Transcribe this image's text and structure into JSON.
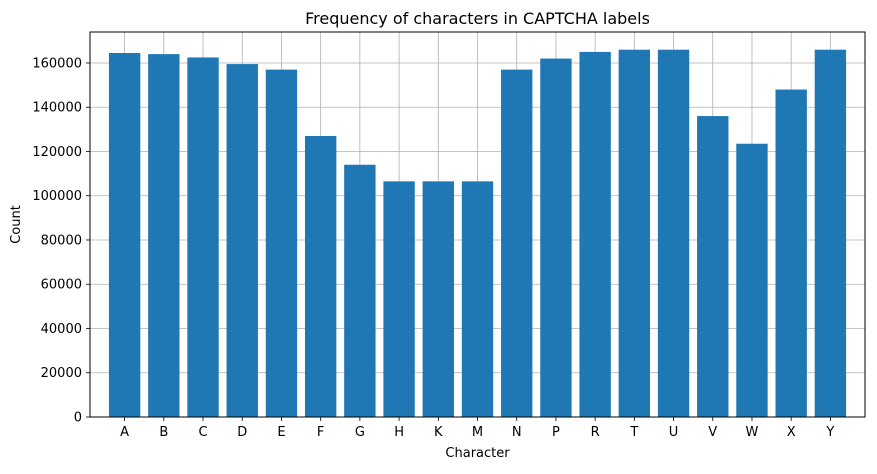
{
  "chart_data": {
    "type": "bar",
    "title": "Frequency of characters in CAPTCHA labels",
    "xlabel": "Character",
    "ylabel": "Count",
    "categories": [
      "A",
      "B",
      "C",
      "D",
      "E",
      "F",
      "G",
      "H",
      "K",
      "M",
      "N",
      "P",
      "R",
      "T",
      "U",
      "V",
      "W",
      "X",
      "Y"
    ],
    "values": [
      164500,
      164000,
      162500,
      159500,
      157000,
      127000,
      114000,
      106500,
      106500,
      106500,
      157000,
      162000,
      165000,
      166000,
      166000,
      136000,
      123500,
      148000,
      166000
    ],
    "ylim": [
      0,
      174000
    ],
    "yticks": [
      0,
      20000,
      40000,
      60000,
      80000,
      100000,
      120000,
      140000,
      160000
    ],
    "grid": true,
    "bar_color": "#1f77b4",
    "grid_color": "#b0b0b0"
  }
}
